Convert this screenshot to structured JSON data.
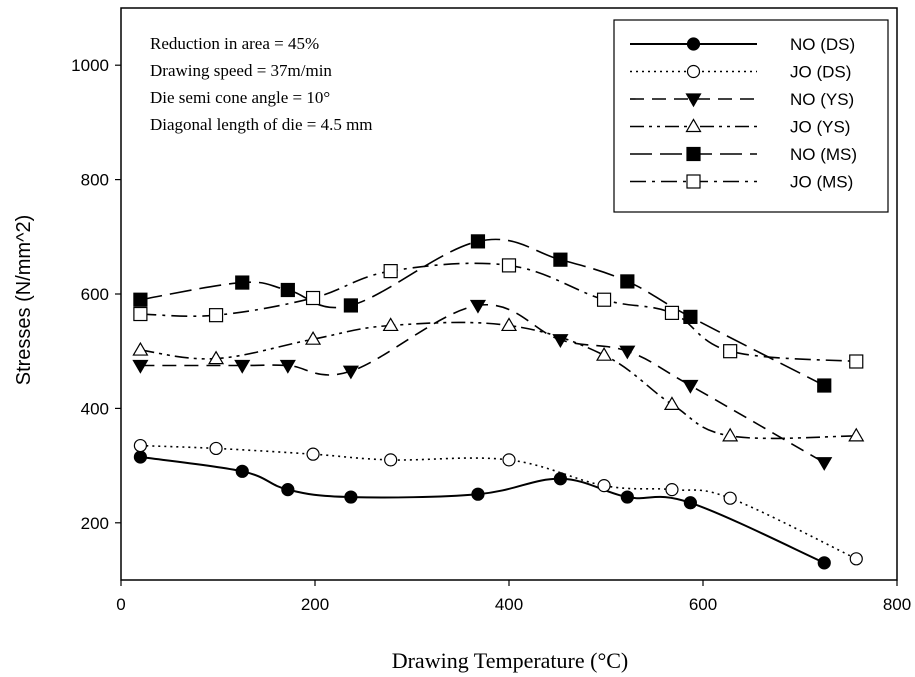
{
  "chart_data": {
    "type": "line",
    "xlabel": "Drawing Temperature (°C)",
    "ylabel": "Stresses (N/mm^2)",
    "xlim": [
      0,
      800
    ],
    "ylim": [
      100,
      1100
    ],
    "xticks": [
      0,
      200,
      400,
      600,
      800
    ],
    "yticks": [
      200,
      400,
      600,
      800,
      1000
    ],
    "grid": false,
    "legend_position": "top-right",
    "annotations": [
      "Reduction in area = 45%",
      "Drawing speed = 37m/min",
      "Die semi cone angle = 10°",
      "Diagonal length of die = 4.5 mm"
    ],
    "series": [
      {
        "name": "NO (DS)",
        "marker": "filled-circle",
        "line": "solid",
        "x": [
          20,
          125,
          172,
          237,
          368,
          453,
          522,
          587,
          725
        ],
        "y": [
          315,
          290,
          258,
          245,
          250,
          277,
          245,
          235,
          130
        ]
      },
      {
        "name": "JO (DS)",
        "marker": "open-circle",
        "line": "dotted",
        "x": [
          20,
          98,
          198,
          278,
          400,
          498,
          568,
          628,
          758
        ],
        "y": [
          335,
          330,
          320,
          310,
          310,
          265,
          258,
          243,
          137
        ]
      },
      {
        "name": "NO (YS)",
        "marker": "filled-triangle-down",
        "line": "dashed",
        "x": [
          20,
          125,
          172,
          237,
          368,
          453,
          522,
          587,
          725
        ],
        "y": [
          475,
          475,
          475,
          465,
          580,
          520,
          500,
          440,
          305
        ]
      },
      {
        "name": "JO (YS)",
        "marker": "open-triangle-up",
        "line": "dash-dot-dot",
        "x": [
          20,
          98,
          198,
          278,
          400,
          498,
          568,
          628,
          758
        ],
        "y": [
          502,
          487,
          521,
          545,
          545,
          493,
          407,
          352,
          352
        ]
      },
      {
        "name": "NO (MS)",
        "marker": "filled-square",
        "line": "long-dash",
        "x": [
          20,
          125,
          172,
          237,
          368,
          453,
          522,
          587,
          725
        ],
        "y": [
          590,
          620,
          607,
          580,
          692,
          660,
          622,
          560,
          440
        ]
      },
      {
        "name": "JO (MS)",
        "marker": "open-square",
        "line": "dash-dot",
        "x": [
          20,
          98,
          198,
          278,
          400,
          498,
          568,
          628,
          758
        ],
        "y": [
          565,
          563,
          593,
          640,
          650,
          590,
          567,
          500,
          482
        ]
      }
    ]
  }
}
